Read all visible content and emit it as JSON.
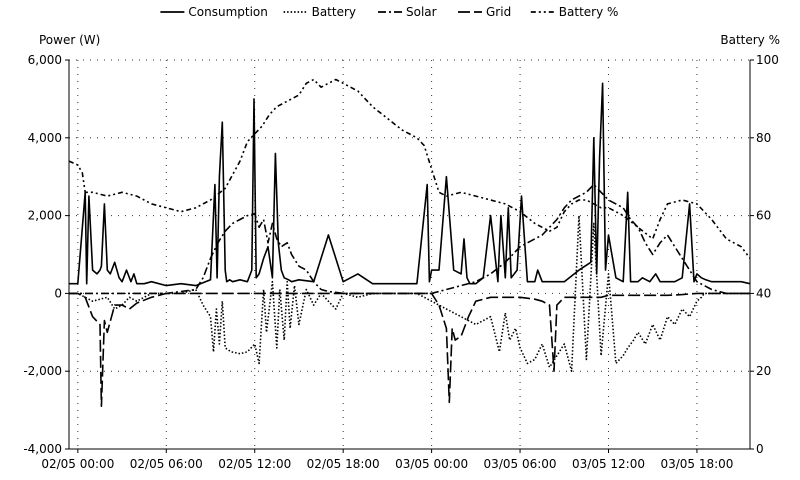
{
  "chart_data": {
    "type": "line",
    "title": "",
    "y_left_label": "Power (W)",
    "y_right_label": "Battery %",
    "ylim_left": [
      -4000,
      6000
    ],
    "ylim_right": [
      0,
      100
    ],
    "yticks_left": [
      "6,000",
      "4,000",
      "2,000",
      "0",
      "-2,000",
      "-4,000"
    ],
    "yticks_left_values": [
      6000,
      4000,
      2000,
      0,
      -2000,
      -4000
    ],
    "yticks_right": [
      "100",
      "80",
      "60",
      "40",
      "20",
      "0"
    ],
    "yticks_right_values": [
      100,
      80,
      60,
      40,
      20,
      0
    ],
    "x_unit": "hours since 02/05 00:00",
    "xlim": [
      -0.6,
      45.6
    ],
    "xticks": [
      "02/05 00:00",
      "02/05 06:00",
      "02/05 12:00",
      "02/05 18:00",
      "03/05 00:00",
      "03/05 06:00",
      "03/05 12:00",
      "03/05 18:00"
    ],
    "xticks_values": [
      0,
      6,
      12,
      18,
      24,
      30,
      36,
      42
    ],
    "grid": "dotted",
    "legend_position": "top-center",
    "series": [
      {
        "name": "Consumption",
        "axis": "left",
        "dash": "",
        "x": [
          -0.6,
          0.0,
          0.5,
          0.6,
          0.75,
          1.0,
          1.3,
          1.5,
          1.6,
          1.8,
          2.0,
          2.2,
          2.5,
          2.8,
          3.0,
          3.3,
          3.6,
          3.8,
          4.0,
          4.5,
          5.0,
          6.0,
          7.0,
          8.0,
          9.0,
          9.3,
          9.45,
          9.6,
          9.8,
          10.0,
          10.1,
          10.3,
          10.5,
          11.0,
          11.5,
          11.8,
          11.95,
          12.1,
          12.3,
          12.6,
          12.9,
          13.2,
          13.4,
          13.6,
          13.8,
          14.0,
          14.3,
          14.5,
          15.0,
          16.0,
          17.0,
          18.0,
          19.0,
          20.0,
          21.0,
          22.0,
          23.0,
          23.7,
          23.85,
          24.0,
          24.5,
          25.0,
          25.5,
          26.0,
          26.2,
          26.4,
          26.6,
          27.0,
          27.5,
          28.0,
          28.5,
          28.7,
          29.0,
          29.2,
          29.4,
          29.8,
          30.1,
          30.5,
          31.0,
          31.2,
          31.5,
          32.0,
          33.0,
          34.0,
          34.8,
          35.0,
          35.2,
          35.4,
          35.6,
          35.8,
          36.0,
          36.5,
          37.0,
          37.3,
          37.5,
          38.0,
          38.3,
          38.8,
          39.2,
          39.5,
          40.0,
          40.5,
          41.0,
          41.5,
          41.8,
          42.0,
          42.3,
          42.6,
          43.0,
          44.0,
          45.0,
          45.6
        ],
        "y": [
          250,
          250,
          2600,
          250,
          2500,
          600,
          500,
          600,
          700,
          2300,
          600,
          500,
          800,
          400,
          300,
          600,
          300,
          500,
          250,
          250,
          300,
          200,
          250,
          200,
          350,
          2800,
          400,
          3000,
          4400,
          600,
          300,
          350,
          300,
          350,
          300,
          600,
          5000,
          400,
          500,
          900,
          1200,
          400,
          3600,
          1300,
          600,
          400,
          350,
          300,
          350,
          300,
          1500,
          300,
          500,
          250,
          250,
          250,
          250,
          2800,
          300,
          600,
          600,
          3000,
          600,
          500,
          1400,
          400,
          250,
          250,
          400,
          2000,
          300,
          2000,
          400,
          2200,
          400,
          600,
          2500,
          300,
          300,
          600,
          300,
          300,
          300,
          600,
          800,
          4000,
          500,
          3500,
          5400,
          600,
          1500,
          400,
          300,
          2600,
          300,
          300,
          400,
          300,
          500,
          300,
          300,
          300,
          400,
          2300,
          300,
          500,
          400,
          350,
          300,
          300,
          300,
          250
        ]
      },
      {
        "name": "Battery",
        "axis": "left",
        "dash": "1.5 2",
        "x": [
          -0.6,
          0.0,
          1.0,
          2.0,
          2.5,
          3.0,
          3.5,
          4.0,
          5.0,
          6.0,
          7.0,
          8.0,
          8.5,
          9.0,
          9.2,
          9.4,
          9.6,
          9.8,
          10.0,
          10.4,
          11.0,
          11.5,
          12.0,
          12.3,
          12.6,
          12.8,
          13.2,
          13.5,
          13.7,
          14.0,
          14.2,
          14.4,
          14.7,
          15.0,
          15.5,
          16.0,
          16.5,
          17.0,
          17.5,
          18.0,
          19.0,
          20.0,
          21.0,
          22.0,
          23.0,
          24.0,
          25.0,
          26.0,
          27.0,
          28.0,
          28.6,
          29.0,
          29.3,
          29.7,
          30.0,
          30.5,
          31.0,
          31.5,
          32.0,
          33.0,
          33.5,
          34.0,
          34.5,
          35.0,
          35.5,
          36.0,
          36.5,
          37.0,
          37.3,
          37.7,
          38.0,
          38.5,
          39.0,
          39.5,
          40.0,
          40.5,
          41.0,
          41.5,
          42.0,
          42.3,
          42.5,
          43.0,
          44.0,
          45.0,
          45.6
        ],
        "y": [
          0,
          0,
          -200,
          -100,
          -400,
          -300,
          -100,
          -200,
          0,
          0,
          0,
          100,
          -300,
          -600,
          -1500,
          -400,
          -1300,
          -200,
          -1400,
          -1500,
          -1550,
          -1500,
          -1300,
          -1800,
          100,
          -1000,
          300,
          -1400,
          100,
          -1200,
          300,
          -900,
          200,
          -800,
          100,
          -300,
          0,
          -200,
          -400,
          0,
          -100,
          0,
          0,
          0,
          0,
          -200,
          -400,
          -600,
          -800,
          -600,
          -1500,
          -500,
          -1200,
          -900,
          -1400,
          -1800,
          -1700,
          -1300,
          -1900,
          -1300,
          -2000,
          2000,
          -1700,
          1800,
          -1600,
          500,
          -1800,
          -1600,
          -1400,
          -1200,
          -1000,
          -1300,
          -800,
          -1200,
          -600,
          -800,
          -400,
          -600,
          -200,
          -100,
          0,
          0,
          0,
          0,
          0
        ]
      },
      {
        "name": "Solar",
        "axis": "left",
        "dash": "8 3 2 3",
        "x": [
          -0.6,
          5.0,
          6.0,
          7.0,
          8.0,
          8.5,
          9.0,
          9.5,
          10.0,
          10.5,
          11.0,
          11.5,
          12.0,
          12.3,
          12.6,
          12.9,
          13.2,
          13.5,
          13.8,
          14.2,
          14.5,
          15.0,
          15.5,
          16.0,
          16.5,
          17.0,
          18.0,
          19.0,
          20.0,
          24.0,
          25.0,
          26.0,
          27.0,
          28.0,
          29.0,
          29.5,
          30.0,
          30.5,
          31.0,
          31.5,
          32.0,
          32.5,
          33.0,
          33.5,
          34.0,
          34.5,
          35.0,
          35.5,
          36.0,
          36.5,
          37.0,
          37.5,
          38.0,
          38.5,
          39.0,
          39.5,
          40.0,
          40.5,
          41.0,
          41.5,
          42.0,
          42.5,
          43.0,
          44.0,
          45.6
        ],
        "y": [
          0,
          0,
          0,
          50,
          100,
          400,
          900,
          1300,
          1600,
          1800,
          1900,
          2000,
          2050,
          1700,
          1900,
          1300,
          1800,
          1400,
          1200,
          1300,
          1000,
          700,
          600,
          300,
          100,
          50,
          0,
          0,
          0,
          0,
          100,
          200,
          300,
          500,
          800,
          1000,
          1200,
          1300,
          1400,
          1500,
          1700,
          1900,
          2200,
          2400,
          2500,
          2600,
          2800,
          2600,
          2400,
          2300,
          2200,
          1900,
          1700,
          1300,
          1000,
          1300,
          1500,
          1200,
          900,
          600,
          300,
          200,
          100,
          0,
          0
        ]
      },
      {
        "name": "Grid",
        "axis": "left",
        "dash": "12 4",
        "x": [
          -0.6,
          0.0,
          0.5,
          1.0,
          1.5,
          1.6,
          1.8,
          2.0,
          2.5,
          3.0,
          3.5,
          4.0,
          5.0,
          6.0,
          7.0,
          8.0,
          8.5,
          9.0,
          10.0,
          11.0,
          12.0,
          13.0,
          14.0,
          15.0,
          16.0,
          17.0,
          18.0,
          20.0,
          22.0,
          23.0,
          24.0,
          24.5,
          25.0,
          25.2,
          25.4,
          25.6,
          26.0,
          26.5,
          27.0,
          28.0,
          29.0,
          30.0,
          31.0,
          31.5,
          32.0,
          32.3,
          32.5,
          33.0,
          33.5,
          34.0,
          34.5,
          35.0,
          35.2,
          35.5,
          36.0,
          37.0,
          38.0,
          38.5,
          39.0,
          40.0,
          41.0,
          42.0,
          43.0,
          44.0,
          45.6
        ],
        "y": [
          0,
          0,
          -100,
          -600,
          -800,
          -2900,
          -700,
          -1000,
          -300,
          -300,
          -400,
          -250,
          -100,
          0,
          0,
          0,
          0,
          0,
          0,
          0,
          0,
          0,
          0,
          0,
          0,
          0,
          0,
          0,
          0,
          0,
          0,
          -300,
          -900,
          -2800,
          -900,
          -1200,
          -1100,
          -600,
          -200,
          -100,
          -100,
          -100,
          -150,
          -200,
          -300,
          -2000,
          -300,
          -100,
          -100,
          -100,
          -100,
          -100,
          -100,
          -100,
          -50,
          -50,
          -50,
          -50,
          -50,
          -50,
          -30,
          0,
          0,
          0,
          0
        ]
      },
      {
        "name": "Battery %",
        "axis": "right",
        "dash": "5 3 2 3 2 3",
        "x": [
          -0.6,
          0.0,
          0.3,
          0.5,
          1.0,
          2.0,
          3.0,
          4.0,
          5.0,
          6.0,
          7.0,
          8.0,
          9.0,
          10.0,
          11.0,
          11.5,
          12.0,
          12.5,
          13.0,
          13.5,
          14.0,
          14.5,
          15.0,
          15.5,
          16.0,
          16.5,
          17.0,
          17.5,
          18.0,
          19.0,
          20.0,
          21.0,
          22.0,
          23.0,
          23.5,
          24.0,
          24.5,
          25.0,
          26.0,
          27.0,
          28.0,
          29.0,
          30.0,
          31.0,
          32.0,
          32.5,
          33.0,
          33.5,
          34.0,
          34.5,
          35.0,
          35.5,
          36.0,
          37.0,
          38.0,
          39.0,
          39.5,
          40.0,
          41.0,
          42.0,
          43.0,
          44.0,
          45.0,
          45.6
        ],
        "y": [
          74,
          73,
          71,
          66,
          66,
          65,
          66,
          65,
          63,
          62,
          61,
          62,
          64,
          67,
          74,
          79,
          81,
          83,
          86,
          88,
          89,
          90,
          91,
          94,
          95,
          93,
          94,
          95,
          94,
          92,
          88,
          85,
          82,
          80,
          78,
          72,
          66,
          65,
          66,
          65,
          64,
          63,
          61,
          58,
          56,
          57,
          61,
          63,
          64,
          64,
          63,
          62,
          62,
          60,
          57,
          54,
          59,
          63,
          64,
          63,
          59,
          54,
          52,
          49
        ]
      }
    ]
  }
}
